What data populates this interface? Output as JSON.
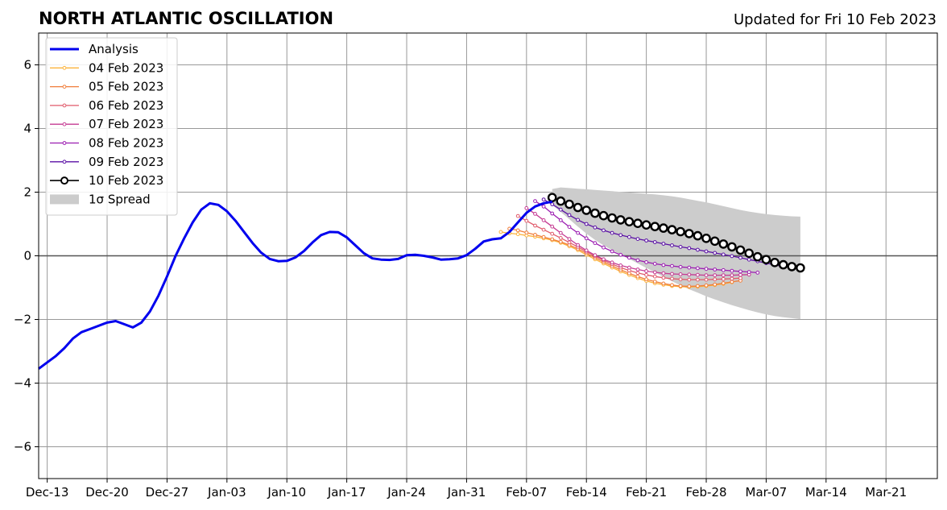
{
  "chart_data": {
    "type": "line",
    "title": "NORTH ATLANTIC OSCILLATION",
    "subtitle": "Updated for Fri 10 Feb 2023",
    "xlabel": "",
    "ylabel": "",
    "x_range": [
      "2022-12-12",
      "2023-03-27"
    ],
    "ylim": [
      -7,
      7
    ],
    "y_ticks": [
      -6,
      -4,
      -2,
      0,
      2,
      4,
      6
    ],
    "y_tick_labels": [
      "−6",
      "−4",
      "−2",
      "0",
      "2",
      "4",
      "6"
    ],
    "x_ticks": [
      "2022-12-13",
      "2022-12-20",
      "2022-12-27",
      "2023-01-03",
      "2023-01-10",
      "2023-01-17",
      "2023-01-24",
      "2023-01-31",
      "2023-02-07",
      "2023-02-14",
      "2023-02-21",
      "2023-02-28",
      "2023-03-07",
      "2023-03-14",
      "2023-03-21"
    ],
    "x_tick_labels": [
      "Dec-13",
      "Dec-20",
      "Dec-27",
      "Jan-03",
      "Jan-10",
      "Jan-17",
      "Jan-24",
      "Jan-31",
      "Feb-07",
      "Feb-14",
      "Feb-21",
      "Feb-28",
      "Mar-07",
      "Mar-14",
      "Mar-21"
    ],
    "grid": true,
    "legend_position": "top-left",
    "analysis": {
      "name": "Analysis",
      "color": "#0000ee",
      "start": "2022-12-12",
      "values": [
        -3.55,
        -3.35,
        -3.15,
        -2.9,
        -2.6,
        -2.4,
        -2.3,
        -2.2,
        -2.1,
        -2.05,
        -2.15,
        -2.25,
        -2.1,
        -1.75,
        -1.25,
        -0.65,
        0.0,
        0.55,
        1.05,
        1.45,
        1.65,
        1.6,
        1.4,
        1.1,
        0.75,
        0.4,
        0.1,
        -0.1,
        -0.17,
        -0.16,
        -0.05,
        0.15,
        0.42,
        0.65,
        0.75,
        0.74,
        0.58,
        0.33,
        0.08,
        -0.08,
        -0.12,
        -0.13,
        -0.1,
        0.02,
        0.03,
        0.0,
        -0.05,
        -0.12,
        -0.11,
        -0.08,
        0.02,
        0.22,
        0.45,
        0.52,
        0.55,
        0.75,
        1.05,
        1.35,
        1.55,
        1.65,
        1.7
      ]
    },
    "forecasts": [
      {
        "name": "04 Feb 2023",
        "color": "#fbb33b",
        "start": "2023-02-04",
        "values": [
          0.75,
          0.71,
          0.68,
          0.64,
          0.6,
          0.55,
          0.49,
          0.41,
          0.3,
          0.18,
          0.03,
          -0.11,
          -0.24,
          -0.37,
          -0.49,
          -0.6,
          -0.7,
          -0.79,
          -0.86,
          -0.91,
          -0.95,
          -0.97,
          -0.98,
          -0.97,
          -0.95,
          -0.92,
          -0.88,
          -0.83
        ]
      },
      {
        "name": "05 Feb 2023",
        "color": "#f07d3a",
        "start": "2023-02-05",
        "values": [
          0.85,
          0.8,
          0.73,
          0.66,
          0.59,
          0.52,
          0.44,
          0.34,
          0.22,
          0.08,
          -0.06,
          -0.19,
          -0.32,
          -0.44,
          -0.55,
          -0.65,
          -0.74,
          -0.81,
          -0.87,
          -0.92,
          -0.95,
          -0.96,
          -0.95,
          -0.93,
          -0.9,
          -0.86,
          -0.82,
          -0.78
        ]
      },
      {
        "name": "06 Feb 2023",
        "color": "#e05a6b",
        "start": "2023-02-06",
        "values": [
          1.25,
          1.1,
          0.95,
          0.82,
          0.69,
          0.56,
          0.42,
          0.28,
          0.13,
          -0.01,
          -0.14,
          -0.26,
          -0.37,
          -0.46,
          -0.54,
          -0.6,
          -0.65,
          -0.69,
          -0.72,
          -0.74,
          -0.75,
          -0.75,
          -0.75,
          -0.74,
          -0.73,
          -0.72,
          -0.7
        ]
      },
      {
        "name": "07 Feb 2023",
        "color": "#c53b93",
        "start": "2023-02-07",
        "values": [
          1.5,
          1.32,
          1.12,
          0.92,
          0.72,
          0.53,
          0.34,
          0.17,
          0.02,
          -0.11,
          -0.21,
          -0.3,
          -0.37,
          -0.43,
          -0.48,
          -0.52,
          -0.55,
          -0.57,
          -0.58,
          -0.59,
          -0.6,
          -0.61,
          -0.61,
          -0.61,
          -0.61,
          -0.6,
          -0.59
        ]
      },
      {
        "name": "08 Feb 2023",
        "color": "#9b1cb1",
        "start": "2023-02-08",
        "values": [
          1.72,
          1.55,
          1.33,
          1.12,
          0.91,
          0.72,
          0.55,
          0.4,
          0.26,
          0.14,
          0.03,
          -0.06,
          -0.14,
          -0.2,
          -0.25,
          -0.29,
          -0.32,
          -0.35,
          -0.37,
          -0.39,
          -0.41,
          -0.43,
          -0.45,
          -0.47,
          -0.49,
          -0.51,
          -0.53
        ]
      },
      {
        "name": "09 Feb 2023",
        "color": "#5a0fa5",
        "start": "2023-02-09",
        "values": [
          1.77,
          1.62,
          1.45,
          1.28,
          1.13,
          1.0,
          0.89,
          0.8,
          0.72,
          0.65,
          0.59,
          0.53,
          0.48,
          0.43,
          0.38,
          0.33,
          0.28,
          0.24,
          0.19,
          0.14,
          0.09,
          0.04,
          -0.01,
          -0.06,
          -0.12,
          -0.17,
          -0.23,
          -0.28,
          -0.34
        ]
      },
      {
        "name": "10 Feb 2023",
        "color": "#000000",
        "start": "2023-02-10",
        "values": [
          1.83,
          1.72,
          1.62,
          1.52,
          1.43,
          1.34,
          1.26,
          1.19,
          1.13,
          1.07,
          1.02,
          0.97,
          0.92,
          0.87,
          0.82,
          0.76,
          0.7,
          0.63,
          0.55,
          0.46,
          0.37,
          0.28,
          0.18,
          0.08,
          -0.03,
          -0.12,
          -0.21,
          -0.28,
          -0.34,
          -0.38
        ]
      }
    ],
    "spread": {
      "name": "1σ Spread",
      "color": "#cccccc",
      "start": "2023-02-10",
      "upper": [
        2.1,
        2.15,
        2.13,
        2.11,
        2.09,
        2.07,
        2.05,
        2.03,
        2.01,
        1.99,
        1.97,
        1.95,
        1.93,
        1.9,
        1.87,
        1.83,
        1.78,
        1.73,
        1.68,
        1.62,
        1.56,
        1.5,
        1.44,
        1.39,
        1.35,
        1.31,
        1.28,
        1.26,
        1.24,
        1.23
      ],
      "lower": [
        1.6,
        1.38,
        1.15,
        0.92,
        0.7,
        0.5,
        0.33,
        0.18,
        0.04,
        -0.1,
        -0.24,
        -0.38,
        -0.52,
        -0.66,
        -0.8,
        -0.93,
        -1.05,
        -1.16,
        -1.27,
        -1.37,
        -1.46,
        -1.55,
        -1.63,
        -1.71,
        -1.78,
        -1.84,
        -1.89,
        -1.93,
        -1.96,
        -1.99
      ]
    }
  }
}
